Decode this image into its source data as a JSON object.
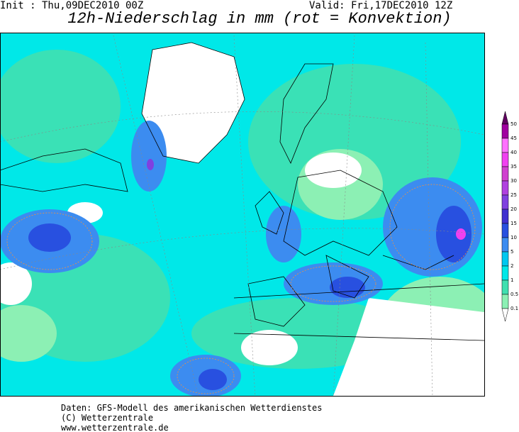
{
  "header": {
    "init": "Init : Thu,09DEC2010 00Z",
    "valid": "Valid: Fri,17DEC2010 12Z",
    "title": "12h-Niederschlag in mm (rot = Konvektion)"
  },
  "legend": {
    "labels": [
      "50",
      "45",
      "40",
      "35",
      "30",
      "25",
      "20",
      "15",
      "10",
      "5",
      "2",
      "1",
      "0.5",
      "0.1"
    ]
  },
  "footer": {
    "lines": [
      "Daten: GFS-Modell des amerikanischen Wetterdienstes",
      "(C) Wetterzentrale",
      "www.wetterzentrale.de"
    ]
  }
}
